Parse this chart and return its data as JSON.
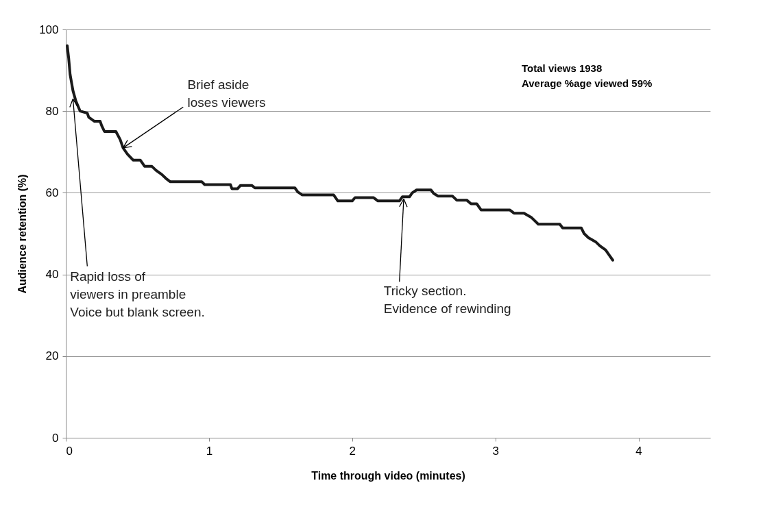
{
  "chart_data": {
    "type": "line",
    "xlabel": "Time through video (minutes)",
    "ylabel": "Audience retention (%)",
    "x": [
      0.01,
      0.02,
      0.03,
      0.05,
      0.07,
      0.1,
      0.15,
      0.16,
      0.2,
      0.24,
      0.25,
      0.27,
      0.35,
      0.38,
      0.4,
      0.43,
      0.47,
      0.52,
      0.55,
      0.6,
      0.63,
      0.67,
      0.7,
      0.73,
      0.95,
      0.97,
      1.15,
      1.16,
      1.2,
      1.22,
      1.3,
      1.32,
      1.6,
      1.62,
      1.65,
      1.87,
      1.9,
      2.0,
      2.02,
      2.15,
      2.18,
      2.33,
      2.35,
      2.4,
      2.42,
      2.45,
      2.55,
      2.57,
      2.6,
      2.7,
      2.73,
      2.8,
      2.83,
      2.87,
      2.9,
      3.1,
      3.13,
      3.2,
      3.25,
      3.3,
      3.45,
      3.47,
      3.6,
      3.62,
      3.65,
      3.7,
      3.73,
      3.77,
      3.8,
      3.82
    ],
    "series": [
      {
        "color": "#1a1a1a",
        "values": [
          96,
          93,
          89,
          85,
          82.5,
          80,
          79.5,
          78.5,
          77.5,
          77.5,
          76.5,
          75,
          75,
          73,
          71,
          69.5,
          68,
          68,
          66.5,
          66.5,
          65.5,
          64.5,
          63.5,
          62.7,
          62.7,
          62,
          62,
          61,
          61,
          61.8,
          61.8,
          61.2,
          61.2,
          60.2,
          59.5,
          59.5,
          58,
          58,
          58.8,
          58.8,
          58,
          58,
          59,
          59,
          60,
          60.7,
          60.7,
          59.8,
          59.2,
          59.2,
          58.2,
          58.2,
          57.3,
          57.3,
          55.8,
          55.8,
          55,
          55,
          54,
          52.3,
          52.3,
          51.4,
          51.4,
          50,
          49,
          48,
          47,
          46,
          44.5,
          43.5
        ]
      }
    ],
    "xlim": [
      0,
      4.5
    ],
    "xticks": [
      0,
      1,
      2,
      3,
      4
    ],
    "ylim": [
      0,
      100
    ],
    "yticks": [
      0,
      20,
      40,
      60,
      80,
      100
    ],
    "grid": "y",
    "legend": false,
    "line_style": "solid",
    "marker": "none",
    "annotations": [
      {
        "text": "Brief aside\nloses viewers",
        "x": 0.4,
        "y": 71
      },
      {
        "text": "Rapid loss of\nviewers in preamble\nVoice but blank screen.",
        "x": 0.05,
        "y": 83
      },
      {
        "text": "Tricky section.\nEvidence of rewinding",
        "x": 2.36,
        "y": 58.5
      },
      "Total views 1938\nAverage %age viewed 59%"
    ]
  }
}
